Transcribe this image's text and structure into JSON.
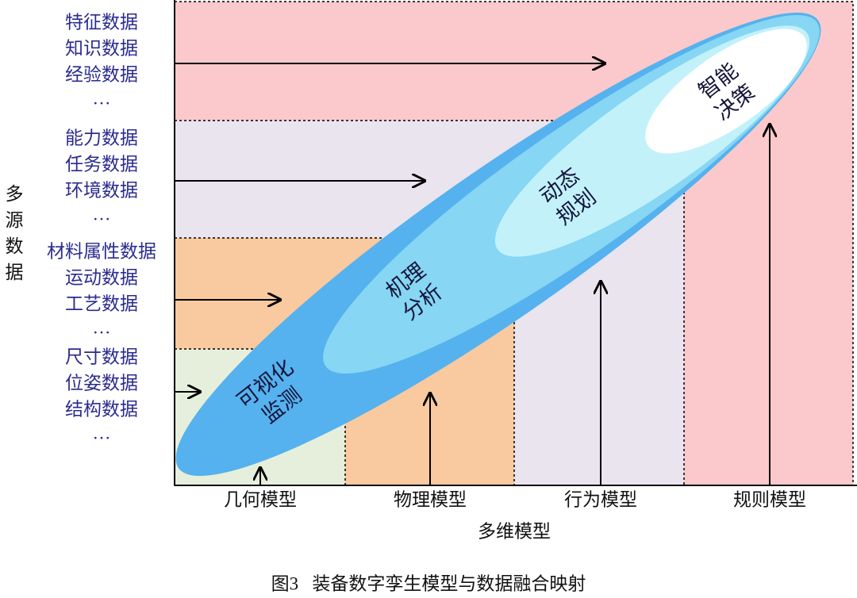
{
  "y_axis_label": "多源数据",
  "source_groups": [
    [
      "特征数据",
      "知识数据",
      "经验数据",
      "…"
    ],
    [
      "能力数据",
      "任务数据",
      "环境数据",
      "…"
    ],
    [
      "材料属性数据",
      "运动数据",
      "工艺数据",
      "…"
    ],
    [
      "尺寸数据",
      "位姿数据",
      "结构数据",
      "…"
    ]
  ],
  "ellipse_labels": [
    [
      "可视化",
      "监测"
    ],
    [
      "机理",
      "分析"
    ],
    [
      "动态",
      "规划"
    ],
    [
      "智能",
      "决策"
    ]
  ],
  "model_categories": [
    "几何模型",
    "物理模型",
    "行为模型",
    "规则模型"
  ],
  "x_axis_label": "多维模型",
  "caption": "图3   装备数字孪生模型与数据融合映射"
}
